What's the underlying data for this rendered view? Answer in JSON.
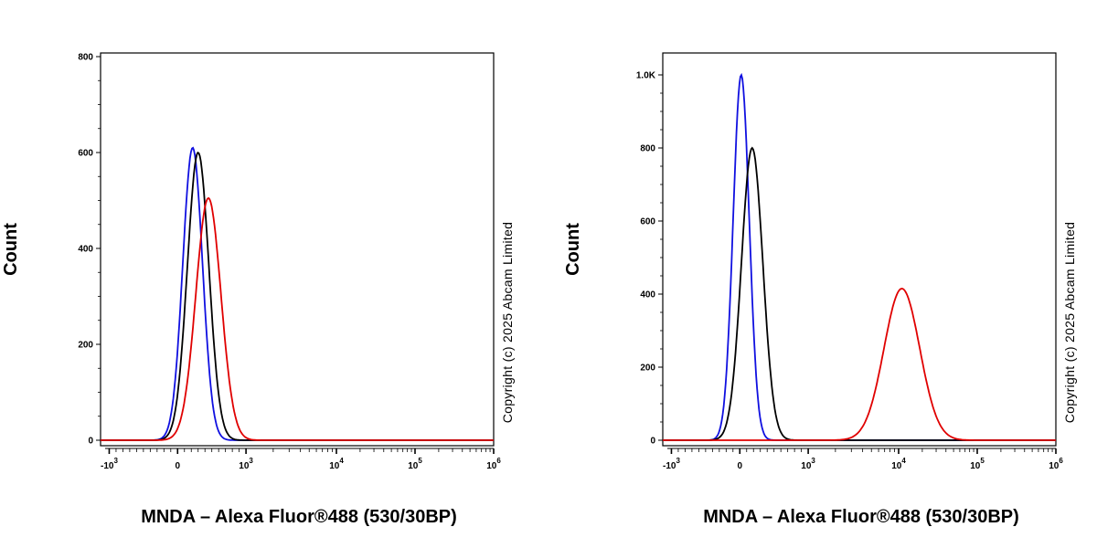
{
  "chart_data": [
    {
      "type": "histogram",
      "ylabel": "Count",
      "xlabel": "MNDA – Alexa Fluor®488 (530/30BP)",
      "copyright": "Copyright (c) 2025 Abcam Limited",
      "x_scale": "biexponential",
      "xlim": [
        -2000,
        1000000
      ],
      "ylim": [
        0,
        800
      ],
      "y_ticks": [
        0,
        200,
        400,
        600,
        800
      ],
      "y_tick_labels": [
        "0",
        "200",
        "400",
        "600",
        "800"
      ],
      "x_ticks": [
        -1000,
        0,
        1000,
        10000,
        100000,
        1000000
      ],
      "x_tick_labels": [
        {
          "base": "-10",
          "exp": "3"
        },
        {
          "base": "0",
          "exp": ""
        },
        {
          "base": "10",
          "exp": "3"
        },
        {
          "base": "10",
          "exp": "4"
        },
        {
          "base": "10",
          "exp": "5"
        },
        {
          "base": "10",
          "exp": "6"
        }
      ],
      "series": [
        {
          "color": "#1010e0",
          "peak_x": 220,
          "peak_y": 610,
          "width": 0.055
        },
        {
          "color": "#000000",
          "peak_x": 300,
          "peak_y": 600,
          "width": 0.06
        },
        {
          "color": "#e00000",
          "peak_x": 450,
          "peak_y": 505,
          "width": 0.07
        }
      ]
    },
    {
      "type": "histogram",
      "ylabel": "Count",
      "xlabel": "MNDA – Alexa Fluor®488 (530/30BP)",
      "copyright": "Copyright (c) 2025 Abcam Limited",
      "x_scale": "biexponential",
      "xlim": [
        -2000,
        1000000
      ],
      "ylim": [
        0,
        1050
      ],
      "y_ticks": [
        0,
        200,
        400,
        600,
        800,
        1000
      ],
      "y_tick_labels": [
        "0",
        "200",
        "400",
        "600",
        "800",
        "1.0K"
      ],
      "x_ticks": [
        -1000,
        0,
        1000,
        10000,
        100000,
        1000000
      ],
      "x_tick_labels": [
        {
          "base": "-10",
          "exp": "3"
        },
        {
          "base": "0",
          "exp": ""
        },
        {
          "base": "10",
          "exp": "3"
        },
        {
          "base": "10",
          "exp": "4"
        },
        {
          "base": "10",
          "exp": "5"
        },
        {
          "base": "10",
          "exp": "6"
        }
      ],
      "series": [
        {
          "color": "#1010e0",
          "peak_x": 20,
          "peak_y": 1000,
          "width": 0.045
        },
        {
          "color": "#000000",
          "peak_x": 180,
          "peak_y": 800,
          "width": 0.06
        },
        {
          "color": "#e00000",
          "peak_x": 11000,
          "peak_y": 415,
          "width": 0.1
        }
      ]
    }
  ]
}
